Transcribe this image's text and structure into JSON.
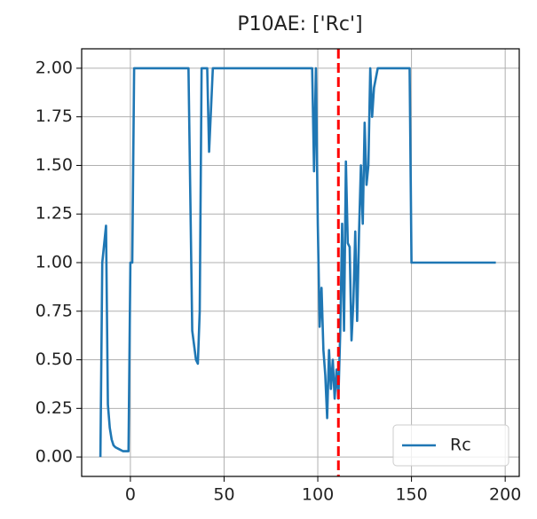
{
  "chart_data": {
    "type": "line",
    "title": "P10AE: ['Rc']",
    "x": [
      -16,
      -15,
      -13,
      -12,
      -11,
      -10,
      -9,
      -8,
      -6,
      -4,
      -1,
      0,
      1,
      2,
      31,
      33,
      35,
      36,
      37,
      38,
      41,
      42,
      44,
      97,
      98,
      99,
      100,
      101,
      102,
      103,
      104,
      105,
      106,
      107,
      108,
      109,
      110,
      111,
      112,
      113,
      114,
      115,
      116,
      117,
      118,
      119,
      120,
      121,
      122,
      123,
      124,
      125,
      126,
      127,
      128,
      129,
      130,
      132,
      149,
      150,
      195
    ],
    "series": [
      {
        "name": "Rc",
        "color": "#1f77b4",
        "values": [
          0,
          1.0,
          1.19,
          0.27,
          0.15,
          0.09,
          0.06,
          0.05,
          0.04,
          0.03,
          0.03,
          1.0,
          1.0,
          2.0,
          2.0,
          0.65,
          0.5,
          0.48,
          0.75,
          2.0,
          2.0,
          1.57,
          2.0,
          2.0,
          1.47,
          2.0,
          1.2,
          0.67,
          0.87,
          0.55,
          0.42,
          0.2,
          0.55,
          0.35,
          0.5,
          0.3,
          0.45,
          0.3,
          0.65,
          1.2,
          0.65,
          1.52,
          1.1,
          1.08,
          0.6,
          0.8,
          1.16,
          0.7,
          1.15,
          1.5,
          1.2,
          1.72,
          1.4,
          1.5,
          2.0,
          1.75,
          1.9,
          2.0,
          2.0,
          1.0,
          1.0
        ]
      }
    ],
    "vline": 111,
    "vline_color": "red",
    "xlim": [
      -26,
      207.5
    ],
    "ylim": [
      -0.1,
      2.1
    ],
    "xticks": [
      0,
      50,
      100,
      150,
      200
    ],
    "yticks": [
      {
        "value": 0,
        "label": "0.00"
      },
      {
        "value": 0.25,
        "label": "0.25"
      },
      {
        "value": 0.5,
        "label": "0.50"
      },
      {
        "value": 0.75,
        "label": "0.75"
      },
      {
        "value": 1,
        "label": "1.00"
      },
      {
        "value": 1.25,
        "label": "1.25"
      },
      {
        "value": 1.5,
        "label": "1.50"
      },
      {
        "value": 1.75,
        "label": "1.75"
      },
      {
        "value": 2,
        "label": "2.00"
      }
    ],
    "grid": true,
    "legend": "lower right"
  }
}
